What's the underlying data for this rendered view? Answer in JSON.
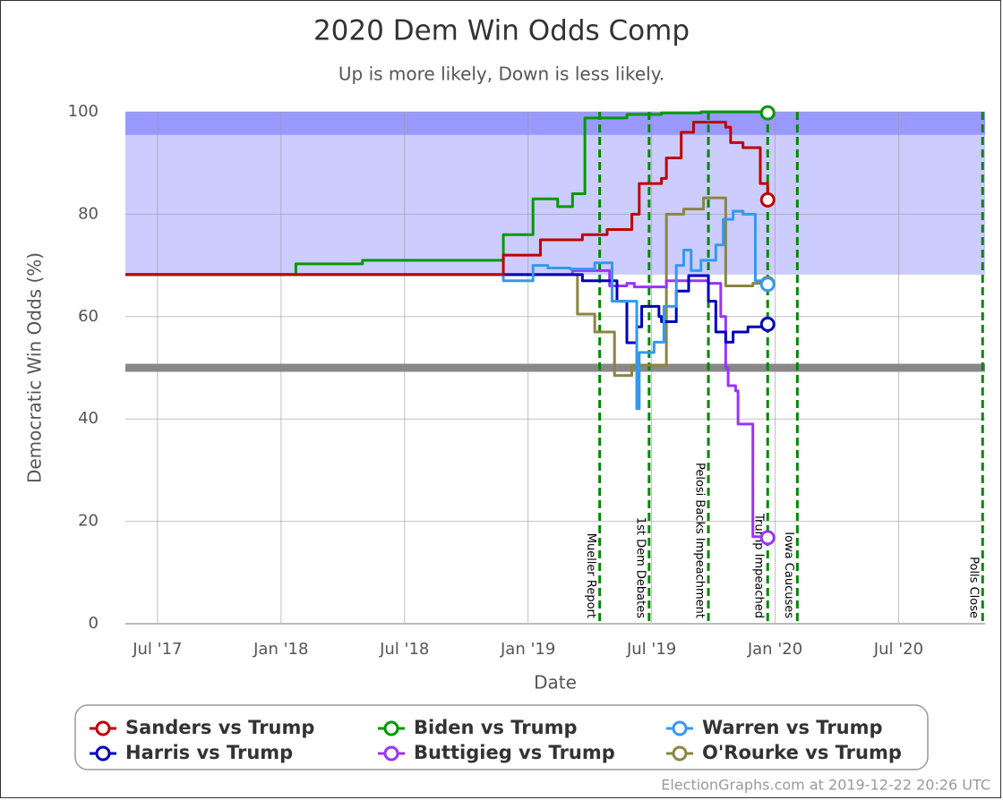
{
  "chart_data": {
    "type": "line",
    "step": true,
    "title": "2020 Dem Win Odds Comp",
    "subtitle": "Up is more likely, Down is less likely.",
    "x_label": "Date",
    "y_label": "Democratic Win Odds (%)",
    "xlim": [
      2017.37,
      2020.85
    ],
    "ylim": [
      0,
      100
    ],
    "xticks": [
      {
        "value": 2017.5,
        "label": "Jul '17"
      },
      {
        "value": 2018.0,
        "label": "Jan '18"
      },
      {
        "value": 2018.5,
        "label": "Jul '18"
      },
      {
        "value": 2019.0,
        "label": "Jan '19"
      },
      {
        "value": 2019.5,
        "label": "Jul '19"
      },
      {
        "value": 2020.0,
        "label": "Jan '20"
      },
      {
        "value": 2020.5,
        "label": "Jul '20"
      }
    ],
    "yticks": [
      0,
      20,
      40,
      60,
      80,
      100
    ],
    "grid": true,
    "bands": [
      {
        "from": 68.2,
        "to": 100,
        "color": "#ccccff"
      },
      {
        "from": 95.5,
        "to": 100,
        "color": "#9999ff"
      }
    ],
    "reference_line": {
      "value": 50,
      "color": "#888888"
    },
    "events": [
      {
        "x": 2019.29,
        "label": "Mueller Report"
      },
      {
        "x": 2019.49,
        "label": "1st Dem Debates"
      },
      {
        "x": 2019.73,
        "label": "Pelosi Backs Impeachment"
      },
      {
        "x": 2019.97,
        "label": "Trump Impeached"
      },
      {
        "x": 2020.09,
        "label": "Iowa Caucuses"
      },
      {
        "x": 2020.84,
        "label": "Polls Close"
      }
    ],
    "series": [
      {
        "name": "Sanders vs Trump",
        "color": "#c00000",
        "x": [
          2017.37,
          2018.9,
          2019.05,
          2019.22,
          2019.32,
          2019.42,
          2019.45,
          2019.54,
          2019.56,
          2019.62,
          2019.67,
          2019.8,
          2019.82,
          2019.87,
          2019.94,
          2019.97
        ],
        "values": [
          68.2,
          72,
          75,
          76,
          77,
          80,
          86,
          87,
          91,
          96,
          98,
          97,
          94,
          93,
          86,
          82.8
        ]
      },
      {
        "name": "Biden vs Trump",
        "color": "#009900",
        "x": [
          2017.37,
          2018.06,
          2018.33,
          2018.9,
          2019.02,
          2019.12,
          2019.18,
          2019.23,
          2019.4,
          2019.54,
          2019.7,
          2019.97
        ],
        "values": [
          68.2,
          70.3,
          71,
          76,
          83,
          81.5,
          84,
          98.8,
          99.5,
          99.8,
          100,
          99.8
        ]
      },
      {
        "name": "Warren vs Trump",
        "color": "#3399ee",
        "x": [
          2017.37,
          2018.9,
          2019.02,
          2019.08,
          2019.17,
          2019.27,
          2019.34,
          2019.44,
          2019.45,
          2019.51,
          2019.55,
          2019.6,
          2019.63,
          2019.66,
          2019.7,
          2019.76,
          2019.79,
          2019.83,
          2019.87,
          2019.92,
          2019.97
        ],
        "values": [
          68.2,
          67,
          70,
          69.5,
          69.3,
          70.5,
          63,
          42,
          53,
          55,
          62,
          70,
          73,
          69,
          71,
          74,
          79,
          80.6,
          80,
          67,
          66.3
        ]
      },
      {
        "name": "Harris vs Trump",
        "color": "#0000bb",
        "x": [
          2017.37,
          2019.22,
          2019.36,
          2019.4,
          2019.44,
          2019.46,
          2019.53,
          2019.54,
          2019.6,
          2019.65,
          2019.73,
          2019.76,
          2019.8,
          2019.83,
          2019.89,
          2019.97
        ],
        "values": [
          68.2,
          67,
          63,
          54.9,
          58,
          62,
          60,
          59,
          65,
          68,
          63,
          57,
          55,
          57,
          58,
          58.5
        ]
      },
      {
        "name": "Buttigieg vs Trump",
        "color": "#9933ff",
        "x": [
          2017.37,
          2019.18,
          2019.33,
          2019.4,
          2019.43,
          2019.56,
          2019.73,
          2019.78,
          2019.8,
          2019.81,
          2019.84,
          2019.85,
          2019.91,
          2019.97
        ],
        "values": [
          68.2,
          69,
          66,
          66.5,
          65.8,
          67,
          66.5,
          60,
          50,
          46.5,
          45.5,
          39,
          17,
          16.8
        ]
      },
      {
        "name": "O'Rourke vs Trump",
        "color": "#8b8540",
        "x": [
          2017.37,
          2019.2,
          2019.27,
          2019.35,
          2019.42,
          2019.56,
          2019.63,
          2019.71,
          2019.8,
          2019.91,
          2019.97
        ],
        "values": [
          68.2,
          60.5,
          57,
          48.5,
          50.5,
          80,
          81,
          83.2,
          66,
          66.5,
          66.5
        ]
      }
    ]
  },
  "footer": "ElectionGraphs.com at 2019-12-22 20:26 UTC"
}
